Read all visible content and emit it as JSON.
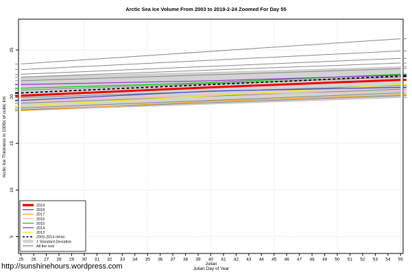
{
  "figure": {
    "title": "Arctic Sea Ice Volume From 2003 to 2019-2-24 Zoomed For Day 55",
    "ylabel": "Arctic Ice Thickness in 1000s of cubic km",
    "xlabel_line1": "Julian",
    "xlabel_line2": "Julian Day of Year",
    "url": "http://sunshinehours.wordpress.com"
  },
  "legend": {
    "items": [
      {
        "label": "2019",
        "color": "#ee0000",
        "swatch": "line-thick"
      },
      {
        "label": "2018",
        "color": "#3c3ccf",
        "swatch": "line"
      },
      {
        "label": "2017",
        "color": "#ff9e00",
        "swatch": "line"
      },
      {
        "label": "2016",
        "color": "#ffb0bc",
        "swatch": "line"
      },
      {
        "label": "2015",
        "color": "#00cc00",
        "swatch": "line"
      },
      {
        "label": "2014",
        "color": "#9b30d9",
        "swatch": "line"
      },
      {
        "label": "2013",
        "color": "#f0f000",
        "swatch": "line"
      },
      {
        "label": "2003-2014 mean",
        "color": "#000000",
        "swatch": "dashed"
      },
      {
        "label": "1 Standard Deviation",
        "color": "#d3d3d3",
        "swatch": "band"
      },
      {
        "label": "All the rest",
        "color": "#858585",
        "swatch": "line"
      }
    ]
  },
  "chart_data": {
    "type": "line",
    "title": "Arctic Sea Ice Volume From 2003 to 2019-2-24 Zoomed For Day 55",
    "xlabel": "Julian Day of Year",
    "ylabel": "Arctic Ice Thickness in 1000s of cubic km",
    "xlim": [
      24.8,
      55.2
    ],
    "ylim": [
      3.2,
      28.3
    ],
    "x_ticks": [
      25,
      26,
      27,
      28,
      29,
      30,
      31,
      32,
      33,
      34,
      35,
      36,
      37,
      38,
      39,
      40,
      41,
      42,
      43,
      44,
      45,
      46,
      47,
      48,
      49,
      50,
      51,
      52,
      53,
      54,
      55
    ],
    "y_ticks": [
      5,
      10,
      15,
      20,
      25
    ],
    "grid": true,
    "grid_color": "#e9e4e4",
    "legend_position": "bottom-left",
    "band": {
      "name": "1 Standard Deviation",
      "x": [
        25,
        40,
        55
      ],
      "upper": [
        22.1,
        22.6,
        23.2
      ],
      "lower": [
        18.5,
        19.2,
        19.9
      ],
      "fill": "#d3d3d3",
      "edge": "#bdbdbd"
    },
    "rest": {
      "name": "All the rest",
      "color": "#858585",
      "x": [
        25,
        55
      ],
      "lines": [
        [
          23.5,
          26.2
        ],
        [
          22.9,
          24.9
        ],
        [
          22.4,
          24.1
        ],
        [
          22.1,
          23.6
        ],
        [
          21.7,
          23.0
        ],
        [
          20.7,
          22.1
        ],
        [
          19.9,
          21.2
        ],
        [
          19.3,
          20.8
        ],
        [
          18.8,
          20.4
        ],
        [
          18.6,
          20.1
        ]
      ]
    },
    "series": [
      {
        "name": "2016",
        "color": "#ffb0bc",
        "width": 1.1,
        "x": [
          25,
          40,
          55
        ],
        "values": [
          19.5,
          20.2,
          20.6
        ]
      },
      {
        "name": "2017",
        "color": "#ff9e00",
        "width": 1.1,
        "x": [
          25,
          40,
          55
        ],
        "values": [
          18.5,
          19.5,
          20.2
        ]
      },
      {
        "name": "2013",
        "color": "#f0f000",
        "width": 1.2,
        "x": [
          25,
          40,
          55
        ],
        "values": [
          19.0,
          20.1,
          21.3
        ]
      },
      {
        "name": "2018",
        "color": "#3c3ccf",
        "width": 1.2,
        "x": [
          25,
          40,
          55
        ],
        "values": [
          19.6,
          20.6,
          21.0
        ]
      },
      {
        "name": "2015",
        "color": "#00cc00",
        "width": 1.2,
        "x": [
          25,
          40,
          55
        ],
        "values": [
          20.9,
          21.5,
          22.4
        ]
      },
      {
        "name": "2014",
        "color": "#9b30d9",
        "width": 1.2,
        "x": [
          25,
          40,
          55
        ],
        "values": [
          21.3,
          21.7,
          22.3
        ]
      },
      {
        "name": "2003-2014 mean",
        "color": "#000000",
        "width": 1.8,
        "dash": "4,3",
        "x": [
          25,
          40,
          55
        ],
        "values": [
          20.4,
          21.3,
          22.2
        ]
      },
      {
        "name": "2019",
        "color": "#ee0000",
        "width": 3,
        "x": [
          25,
          40,
          55
        ],
        "values": [
          20.1,
          21.0,
          21.8
        ]
      }
    ]
  }
}
